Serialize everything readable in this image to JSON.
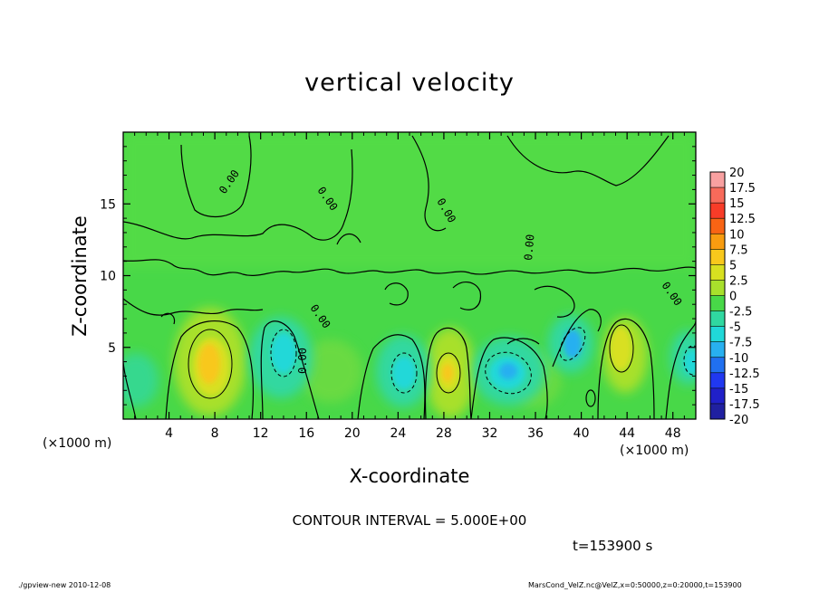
{
  "chart_data": {
    "type": "heatmap",
    "title": "vertical velocity",
    "xlabel": "X-coordinate",
    "ylabel": "Z-coordinate",
    "x_unit_label": "(×1000 m)",
    "x_ticks": [
      4,
      8,
      12,
      16,
      20,
      24,
      28,
      32,
      36,
      40,
      44,
      48
    ],
    "y_ticks": [
      5,
      10,
      15
    ],
    "xlim": [
      0,
      50
    ],
    "ylim": [
      0,
      20
    ],
    "colorbar": {
      "levels": [
        "20",
        "17.5",
        "15",
        "12.5",
        "10",
        "7.5",
        "5",
        "2.5",
        "0",
        "-2.5",
        "-5",
        "-7.5",
        "-10",
        "-12.5",
        "-15",
        "-17.5",
        "-20"
      ],
      "colors": [
        "#f8a0a0",
        "#f86a5a",
        "#f83c28",
        "#f86414",
        "#f89c10",
        "#f8c81c",
        "#d8e020",
        "#a8e02c",
        "#48d848",
        "#30d8a0",
        "#20d8d8",
        "#28b0f0",
        "#2070f0",
        "#2038f0",
        "#2020c8",
        "#2020a0",
        "#6020a8"
      ]
    },
    "contour_labels": [
      "0.00",
      "0.00",
      "0.00",
      "0.00",
      "0.00",
      "0.00",
      "0.00"
    ],
    "regions": [
      {
        "sign": "positive",
        "x": 7.5,
        "z": 3.5,
        "peak": 7.5
      },
      {
        "sign": "positive",
        "x": 28.5,
        "z": 3.0,
        "peak": 5
      },
      {
        "sign": "positive",
        "x": 43.5,
        "z": 5.0,
        "peak": 5
      },
      {
        "sign": "negative",
        "x": 13.5,
        "z": 4.5,
        "peak": -5
      },
      {
        "sign": "negative",
        "x": 24.5,
        "z": 3.0,
        "peak": -5
      },
      {
        "sign": "negative",
        "x": 33.0,
        "z": 3.0,
        "peak": -5
      },
      {
        "sign": "negative",
        "x": 39.0,
        "z": 5.0,
        "peak": -5
      }
    ]
  },
  "annotations": {
    "contour_interval": "CONTOUR INTERVAL = 5.000E+00",
    "time": "t=153900 s",
    "footer_left": "./gpview-new  2010-12-08",
    "footer_right": "MarsCond_VelZ.nc@VelZ,x=0:50000,z=0:20000,t=153900"
  }
}
